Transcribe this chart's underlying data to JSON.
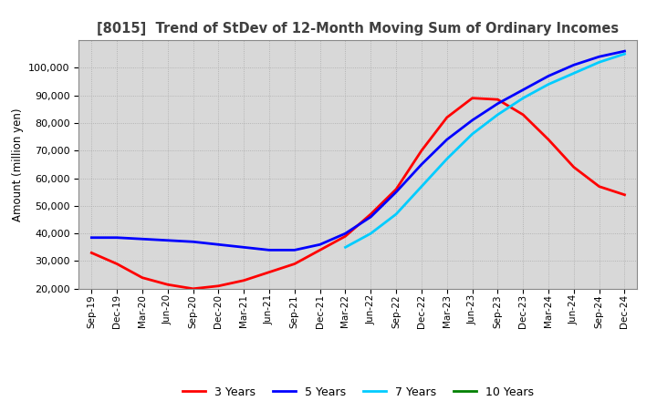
{
  "title": "[8015]  Trend of StDev of 12-Month Moving Sum of Ordinary Incomes",
  "ylabel": "Amount (million yen)",
  "ylim": [
    20000,
    110000
  ],
  "yticks": [
    20000,
    30000,
    40000,
    50000,
    60000,
    70000,
    80000,
    90000,
    100000
  ],
  "background_color": "#ffffff",
  "plot_bg_color": "#d8d8d8",
  "grid_color": "#aaaaaa",
  "legend_labels": [
    "3 Years",
    "5 Years",
    "7 Years",
    "10 Years"
  ],
  "legend_colors": [
    "#ff0000",
    "#0000ff",
    "#00ccff",
    "#008000"
  ],
  "x_labels": [
    "Sep-19",
    "Dec-19",
    "Mar-20",
    "Jun-20",
    "Sep-20",
    "Dec-20",
    "Mar-21",
    "Jun-21",
    "Sep-21",
    "Dec-21",
    "Mar-22",
    "Jun-22",
    "Sep-22",
    "Dec-22",
    "Mar-23",
    "Jun-23",
    "Sep-23",
    "Dec-23",
    "Mar-24",
    "Jun-24",
    "Sep-24",
    "Dec-24"
  ],
  "series_3y": [
    33000,
    29000,
    24000,
    21500,
    20000,
    21000,
    23000,
    26000,
    29000,
    34000,
    39000,
    47000,
    56000,
    70000,
    82000,
    89000,
    88500,
    83000,
    74000,
    64000,
    57000,
    54000
  ],
  "series_5y": [
    38500,
    38500,
    38000,
    37500,
    37000,
    36000,
    35000,
    34000,
    34000,
    36000,
    40000,
    46000,
    55000,
    65000,
    74000,
    81000,
    87000,
    92000,
    97000,
    101000,
    104000,
    106000
  ],
  "series_7y": [
    null,
    null,
    null,
    null,
    null,
    null,
    null,
    null,
    null,
    null,
    35000,
    40000,
    47000,
    57000,
    67000,
    76000,
    83000,
    89000,
    94000,
    98000,
    102000,
    105000
  ],
  "series_10y": [
    null,
    null,
    null,
    null,
    null,
    null,
    null,
    null,
    null,
    null,
    null,
    null,
    null,
    null,
    null,
    null,
    null,
    null,
    null,
    null,
    null,
    null
  ]
}
